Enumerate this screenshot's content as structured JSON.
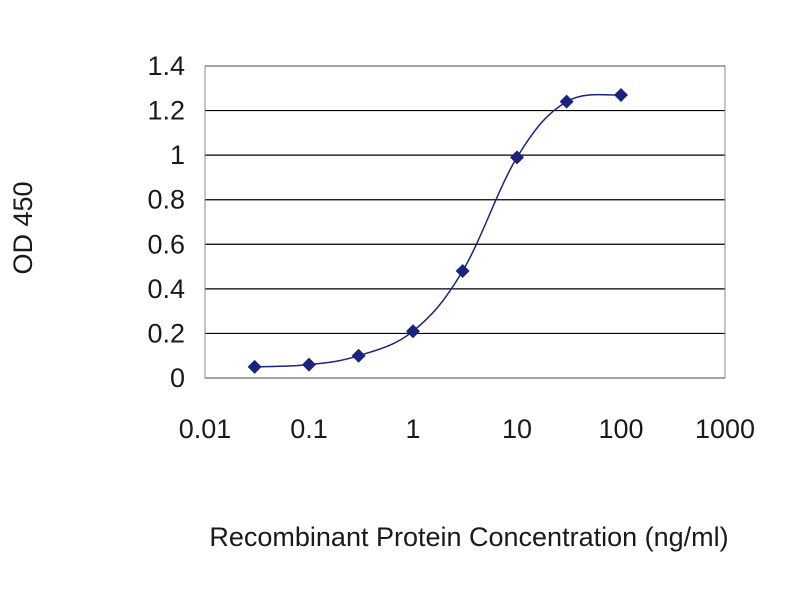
{
  "chart_data": {
    "type": "line",
    "title": "",
    "xlabel": "Recombinant Protein Concentration (ng/ml)",
    "ylabel": "OD 450",
    "x_scale": "log",
    "xlim": [
      0.01,
      1000
    ],
    "ylim": [
      0,
      1.4
    ],
    "x_ticks": [
      "0.01",
      "0.1",
      "1",
      "10",
      "100",
      "1000"
    ],
    "y_ticks": [
      "0",
      "0.2",
      "0.4",
      "0.6",
      "0.8",
      "1",
      "1.2",
      "1.4"
    ],
    "grid": "horizontal",
    "legend": "none",
    "colors": {
      "series": "#1a237e",
      "grid": "#000000",
      "plot_border": "#888888"
    },
    "series": [
      {
        "x": [
          0.03,
          0.1,
          0.3,
          1,
          3,
          10,
          30,
          100
        ],
        "y": [
          0.05,
          0.06,
          0.1,
          0.21,
          0.48,
          0.99,
          1.24,
          1.27
        ]
      }
    ]
  }
}
